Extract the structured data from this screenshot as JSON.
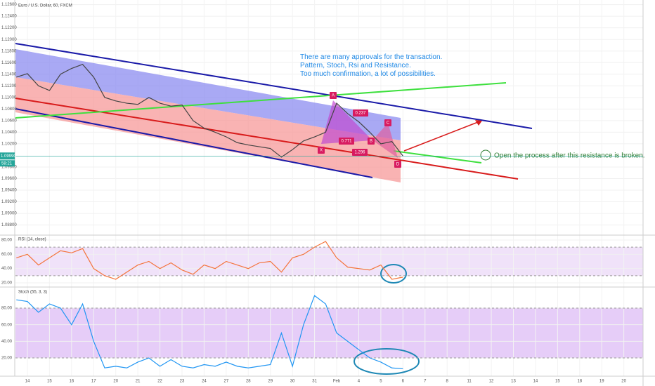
{
  "chart_data": [
    {
      "type": "line",
      "title": "Euro / U.S. Dollar, 60, FXCM",
      "x": [
        -0.5,
        0,
        0.5,
        1,
        1.5,
        2,
        2.5,
        3,
        3.5,
        4,
        4.5,
        5,
        5.5,
        6,
        6.5,
        7,
        7.5,
        8,
        8.5,
        9,
        9.5,
        10,
        10.5,
        11,
        11.5,
        12,
        12.5,
        13,
        13.5,
        14,
        14.5,
        15,
        15.5,
        16,
        16.5,
        17
      ],
      "values": [
        1.1135,
        1.1141,
        1.112,
        1.1112,
        1.114,
        1.115,
        1.1157,
        1.1135,
        1.11,
        1.1094,
        1.109,
        1.1088,
        1.11,
        1.109,
        1.1085,
        1.1087,
        1.106,
        1.1047,
        1.104,
        1.1032,
        1.1022,
        1.1018,
        1.1015,
        1.1012,
        1.0997,
        1.101,
        1.1025,
        1.1032,
        1.104,
        1.109,
        1.1072,
        1.1058,
        1.104,
        1.102,
        1.1024,
        1.0999
      ],
      "color": "#444444",
      "xlim": [
        -0.54,
        27.87
      ],
      "ylim": [
        1.0865,
        1.1268
      ],
      "yticks": [
        {
          "value": 1.126,
          "label": "1.12600"
        },
        {
          "value": 1.124,
          "label": "1.12400"
        },
        {
          "value": 1.122,
          "label": "1.12200"
        },
        {
          "value": 1.12,
          "label": "1.12000"
        },
        {
          "value": 1.118,
          "label": "1.11800"
        },
        {
          "value": 1.116,
          "label": "1.11600"
        },
        {
          "value": 1.114,
          "label": "1.11400"
        },
        {
          "value": 1.112,
          "label": "1.11200"
        },
        {
          "value": 1.11,
          "label": "1.11000"
        },
        {
          "value": 1.108,
          "label": "1.10800"
        },
        {
          "value": 1.106,
          "label": "1.10600"
        },
        {
          "value": 1.104,
          "label": "1.10400"
        },
        {
          "value": 1.102,
          "label": "1.10200"
        },
        {
          "value": 1.098,
          "label": "1.09800"
        },
        {
          "value": 1.096,
          "label": "1.09600"
        },
        {
          "value": 1.094,
          "label": "1.09400"
        },
        {
          "value": 1.092,
          "label": "1.09200"
        },
        {
          "value": 1.09,
          "label": "1.09000"
        },
        {
          "value": 1.088,
          "label": "1.08800"
        }
      ],
      "price_label": {
        "value": 1.0999,
        "label": "1.09990"
      },
      "countdown": "58:21",
      "annotations": [
        "There are many approvals for the transaction.",
        "Pattern, Stoch, Rsi and Resistance.",
        "Too much confirmation, a lot of possibilities.",
        "Open the process after this resistance is broken."
      ],
      "pattern_labels": [
        "X",
        "A",
        "B",
        "C",
        "D"
      ],
      "ratios": [
        "0.237",
        "0.771",
        "1.296"
      ]
    },
    {
      "type": "line",
      "title": "RSI (14, close)",
      "x": [
        -0.5,
        0,
        0.5,
        1,
        1.5,
        2,
        2.5,
        3,
        3.5,
        4,
        4.5,
        5,
        5.5,
        6,
        6.5,
        7,
        7.5,
        8,
        8.5,
        9,
        9.5,
        10,
        10.5,
        11,
        11.5,
        12,
        12.5,
        13,
        13.5,
        14,
        14.5,
        15,
        15.5,
        16,
        16.5,
        17
      ],
      "values": [
        55,
        60,
        45,
        55,
        65,
        62,
        68,
        40,
        30,
        25,
        35,
        45,
        50,
        40,
        48,
        38,
        32,
        45,
        40,
        50,
        45,
        40,
        48,
        50,
        35,
        55,
        60,
        70,
        78,
        55,
        42,
        40,
        38,
        45,
        25,
        28
      ],
      "color": "#f4743b",
      "band": [
        30,
        70
      ],
      "band_color": "#e9d5f7",
      "xlim": [
        -0.54,
        27.87
      ],
      "ylim": [
        15.1,
        83.9
      ],
      "yticks": [
        {
          "value": 80,
          "label": "80.00"
        },
        {
          "value": 60,
          "label": "60.00"
        },
        {
          "value": 40,
          "label": "40.00"
        },
        {
          "value": 20,
          "label": "20.00"
        }
      ]
    },
    {
      "type": "line",
      "title": "Stoch (55, 3, 3)",
      "x": [
        -0.5,
        0,
        0.5,
        1,
        1.5,
        2,
        2.5,
        3,
        3.5,
        4,
        4.5,
        5,
        5.5,
        6,
        6.5,
        7,
        7.5,
        8,
        8.5,
        9,
        9.5,
        10,
        10.5,
        11,
        11.5,
        12,
        12.5,
        13,
        13.5,
        14,
        14.5,
        15,
        15.5,
        16,
        16.5,
        17
      ],
      "values": [
        90,
        88,
        75,
        85,
        80,
        60,
        85,
        40,
        8,
        10,
        8,
        15,
        20,
        10,
        18,
        10,
        8,
        12,
        10,
        15,
        10,
        8,
        10,
        12,
        50,
        10,
        60,
        95,
        85,
        50,
        40,
        30,
        20,
        15,
        8,
        7
      ],
      "color": "#2196f3",
      "band": [
        20,
        80
      ],
      "band_color": "#dcb8f5",
      "xlim": [
        -0.54,
        27.87
      ],
      "ylim": [
        -1.1,
        104.5
      ],
      "yticks": [
        {
          "value": 80,
          "label": "80.00"
        },
        {
          "value": 60,
          "label": "60.00"
        },
        {
          "value": 40,
          "label": "40.00"
        },
        {
          "value": 20,
          "label": "20.00"
        }
      ],
      "xticks": [
        {
          "value": 0,
          "label": "14"
        },
        {
          "value": 1,
          "label": "15"
        },
        {
          "value": 2,
          "label": "16"
        },
        {
          "value": 3,
          "label": "17"
        },
        {
          "value": 4,
          "label": "20"
        },
        {
          "value": 5,
          "label": "21"
        },
        {
          "value": 6,
          "label": "22"
        },
        {
          "value": 7,
          "label": "23"
        },
        {
          "value": 8,
          "label": "24"
        },
        {
          "value": 9,
          "label": "27"
        },
        {
          "value": 10,
          "label": "28"
        },
        {
          "value": 11,
          "label": "29"
        },
        {
          "value": 12,
          "label": "30"
        },
        {
          "value": 13,
          "label": "31"
        },
        {
          "value": 14,
          "label": "Feb"
        },
        {
          "value": 15,
          "label": "4"
        },
        {
          "value": 16,
          "label": "5"
        },
        {
          "value": 17,
          "label": "6"
        },
        {
          "value": 18,
          "label": "7"
        },
        {
          "value": 19,
          "label": "8"
        },
        {
          "value": 20,
          "label": "11"
        },
        {
          "value": 21,
          "label": "12"
        },
        {
          "value": 22,
          "label": "13"
        },
        {
          "value": 23,
          "label": "14"
        },
        {
          "value": 24,
          "label": "15"
        },
        {
          "value": 25,
          "label": "18"
        },
        {
          "value": 26,
          "label": "19"
        },
        {
          "value": 27,
          "label": "20"
        }
      ]
    }
  ]
}
